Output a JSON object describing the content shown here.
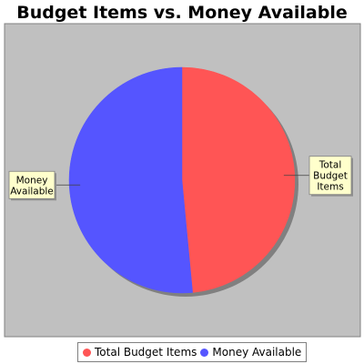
{
  "chart_data": {
    "type": "pie",
    "title": "Budget Items vs. Money Available",
    "slices": [
      {
        "name": "Total Budget Items",
        "value": 48.5,
        "color": "#ff5555",
        "label_lines": [
          "Total",
          "Budget",
          "Items"
        ]
      },
      {
        "name": "Money Available",
        "value": 51.5,
        "color": "#5555ff",
        "label_lines": [
          "Money",
          "Available"
        ]
      }
    ],
    "legend_position": "bottom",
    "plot_background": "#c0c0c0"
  }
}
